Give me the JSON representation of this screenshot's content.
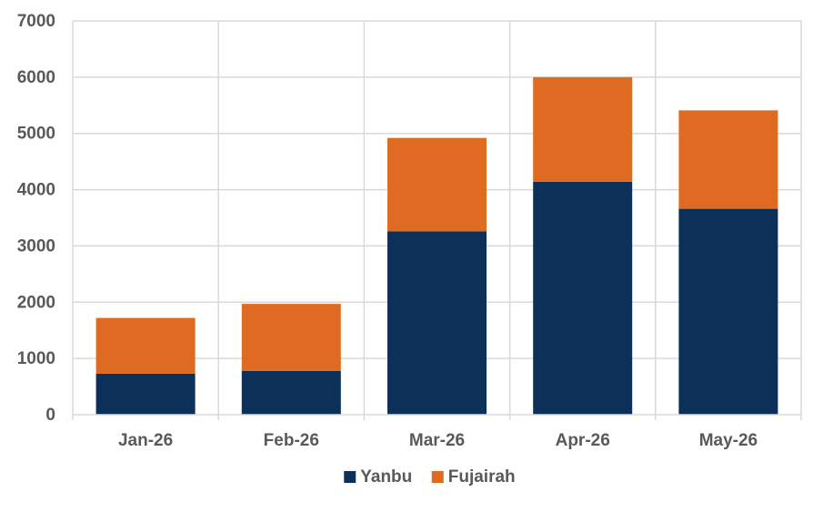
{
  "chart_data": {
    "type": "bar",
    "stacked": true,
    "categories": [
      "Jan-26",
      "Feb-26",
      "Mar-26",
      "Apr-26",
      "May-26"
    ],
    "series": [
      {
        "name": "Yanbu",
        "color": "#0d3059",
        "values": [
          730,
          780,
          3260,
          4140,
          3660
        ]
      },
      {
        "name": "Fujairah",
        "color": "#de6b21",
        "values": [
          990,
          1190,
          1660,
          1860,
          1750
        ]
      }
    ],
    "ylim": [
      0,
      7000
    ],
    "yticks": [
      0,
      1000,
      2000,
      3000,
      4000,
      5000,
      6000,
      7000
    ],
    "grid": true,
    "legend_position": "bottom"
  }
}
